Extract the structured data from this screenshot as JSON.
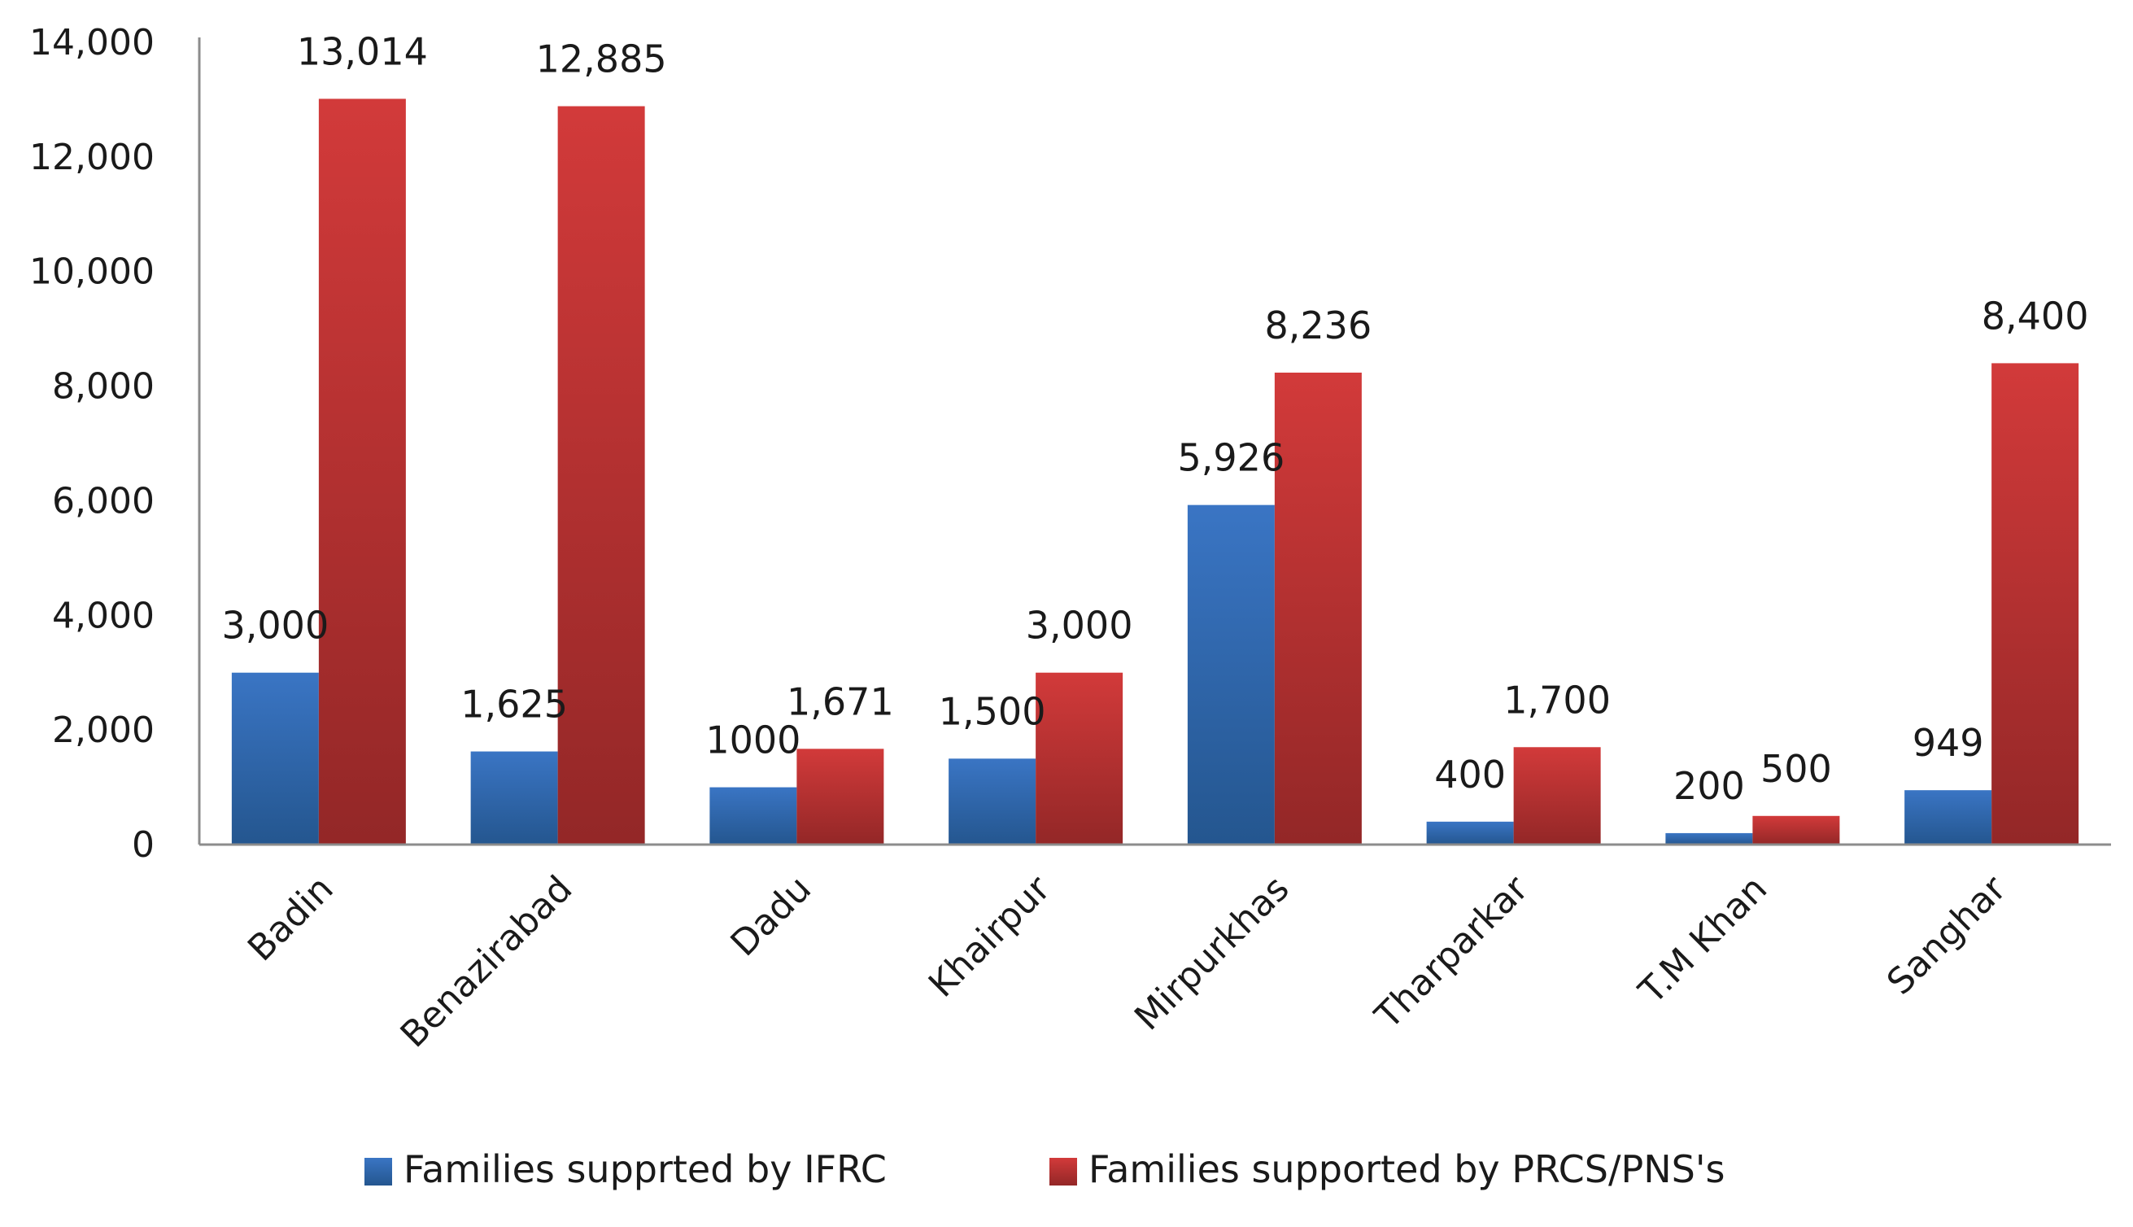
{
  "chart_data": {
    "type": "bar",
    "title": "",
    "xlabel": "",
    "ylabel": "",
    "categories": [
      "Badin",
      "Benazirabad",
      "Dadu",
      "Khairpur",
      "Mirpurkhas",
      "Tharparkar",
      "T.M Khan",
      "Sanghar"
    ],
    "series": [
      {
        "name": "Families supprted by IFRC",
        "values": [
          3000,
          1625,
          1000,
          1500,
          5926,
          400,
          200,
          949
        ],
        "labels": [
          "3,000",
          "1,625",
          "1000",
          "1,500",
          "5,926",
          "400",
          "200",
          "949"
        ],
        "color": "#3a75c4",
        "color_dark": "#24568f"
      },
      {
        "name": "Families supported by PRCS/PNS's",
        "values": [
          13014,
          12885,
          1671,
          3000,
          8236,
          1700,
          500,
          8400
        ],
        "labels": [
          "13,014",
          "12,885",
          "1,671",
          "3,000",
          "8,236",
          "1,700",
          "500",
          "8,400"
        ],
        "color": "#d23a3a",
        "color_dark": "#932727"
      }
    ],
    "ylim": [
      0,
      14000
    ],
    "yticks": [
      0,
      2000,
      4000,
      6000,
      8000,
      10000,
      12000,
      14000
    ],
    "ytick_labels": [
      "0",
      "2,000",
      "4,000",
      "6,000",
      "8,000",
      "10,000",
      "12,000",
      "14,000"
    ],
    "grid": false,
    "legend": "bottom"
  }
}
